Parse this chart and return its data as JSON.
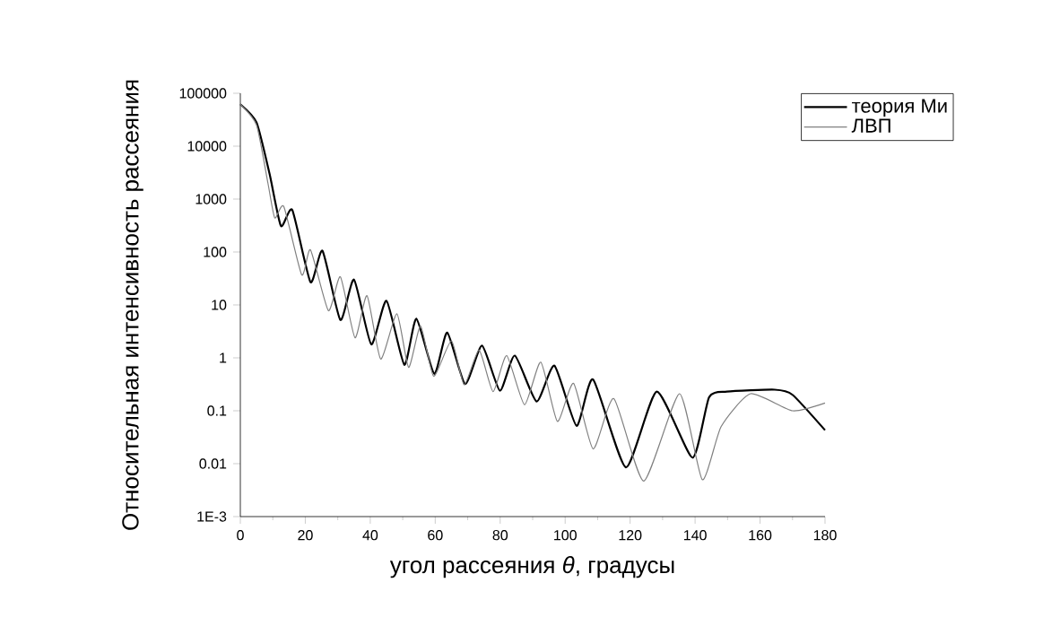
{
  "chart_data": {
    "type": "line",
    "xlabel": "угол рассеяния *θ*, градусы",
    "ylabel": "Относительная интенсивность рассеяния",
    "log": "y",
    "xlim": [
      0,
      180
    ],
    "ylim": [
      0.001,
      100000
    ],
    "xticks": [
      0,
      20,
      40,
      60,
      80,
      100,
      120,
      140,
      160,
      180
    ],
    "yticks": [
      {
        "value": 0.001,
        "label": "1E-3"
      },
      0.01,
      0.1,
      1,
      10,
      100,
      1000,
      10000,
      100000
    ],
    "legend": "top right",
    "grid": false,
    "marker": "none",
    "line_style": "solid",
    "series": [
      {
        "name": "теория Ми",
        "color": "#000000",
        "x": [
          0,
          5,
          9,
          12.5,
          16,
          21.6,
          25.3,
          30.8,
          35,
          40.3,
          45,
          50.5,
          54.2,
          59.7,
          63.7,
          69.2,
          74.4,
          79.9,
          84.5,
          91.2,
          96.7,
          103.5,
          108.6,
          118.7,
          128.2,
          139.2,
          144.3,
          149.8,
          164.5,
          170,
          180
        ],
        "values": [
          62000,
          28000,
          3000,
          310,
          620,
          27,
          105,
          5.2,
          30,
          1.8,
          12,
          0.74,
          5.5,
          0.5,
          3.0,
          0.32,
          1.7,
          0.24,
          1.1,
          0.15,
          0.71,
          0.052,
          0.39,
          0.0085,
          0.23,
          0.013,
          0.18,
          0.23,
          0.25,
          0.2,
          0.043
        ]
      },
      {
        "name": "ЛВП",
        "color": "#808080",
        "x": [
          0,
          5,
          8.5,
          10.6,
          13.4,
          18.9,
          21.6,
          27.1,
          30.8,
          35.3,
          39,
          43.2,
          48.2,
          51.8,
          55.5,
          59.5,
          65,
          68.9,
          73.5,
          77.8,
          82,
          87.5,
          92.5,
          97.6,
          102.6,
          108.6,
          115,
          124.2,
          135.2,
          142.2,
          148,
          157.1,
          170,
          180
        ],
        "values": [
          62000,
          25000,
          2000,
          440,
          720,
          37,
          110,
          7.8,
          34,
          2.4,
          15,
          0.95,
          6.8,
          0.66,
          4.0,
          0.45,
          2.1,
          0.31,
          1.4,
          0.23,
          1.1,
          0.13,
          0.83,
          0.063,
          0.33,
          0.019,
          0.17,
          0.0047,
          0.21,
          0.005,
          0.05,
          0.21,
          0.1,
          0.14
        ]
      }
    ]
  }
}
